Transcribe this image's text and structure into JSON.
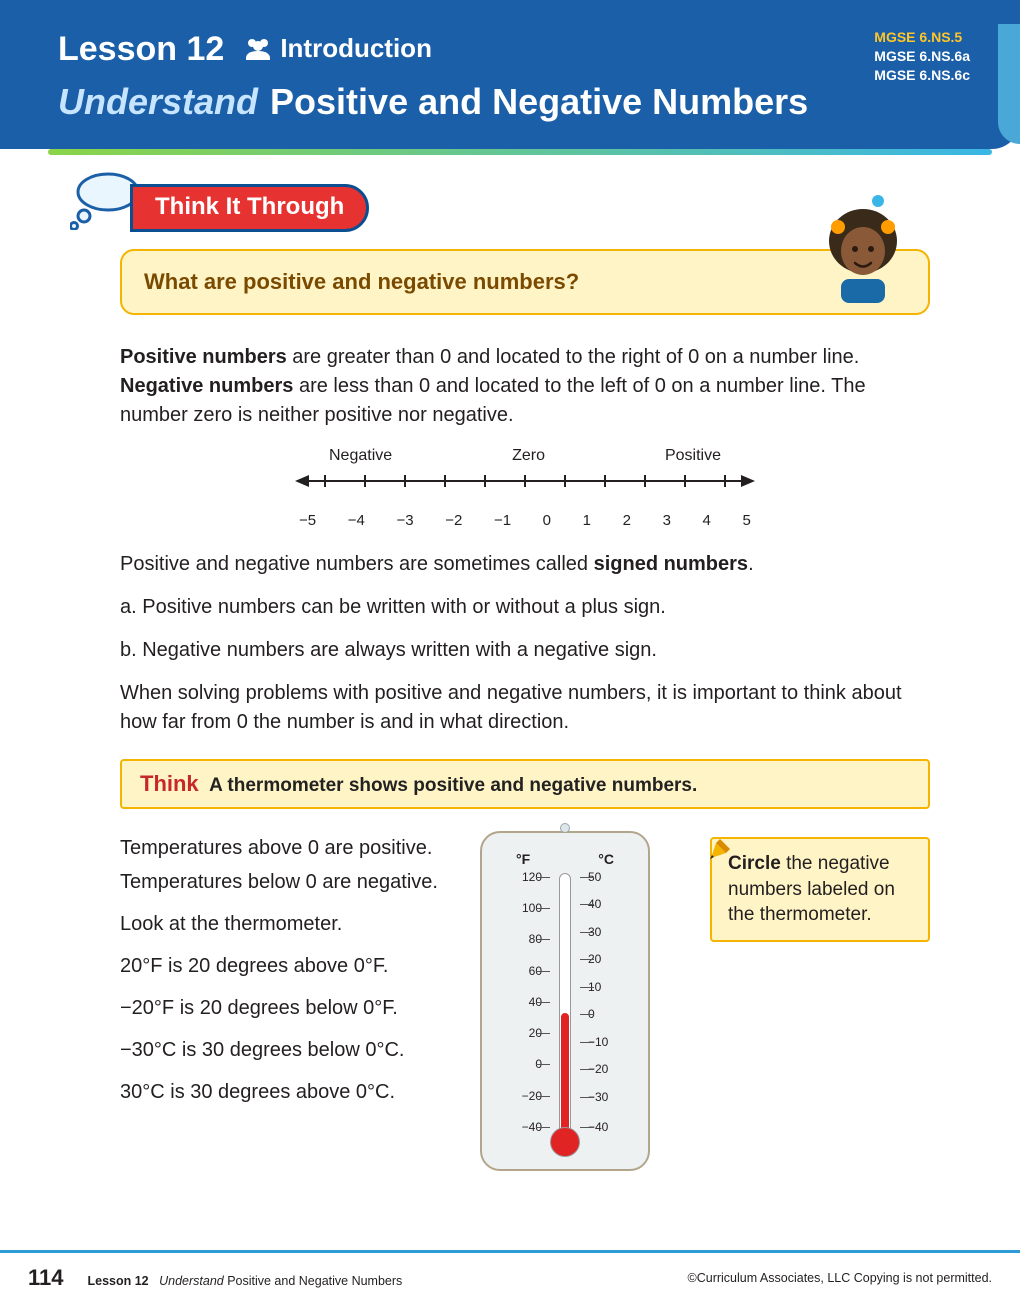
{
  "header": {
    "lesson_label": "Lesson 12",
    "intro_label": "Introduction",
    "standards": [
      "MGSE 6.NS.5",
      "MGSE 6.NS.6a",
      "MGSE 6.NS.6c"
    ],
    "title_understand": "Understand",
    "title_rest": "Positive and Negative Numbers"
  },
  "section": {
    "think_it_through": "Think It Through",
    "question": "What are positive and negative numbers?"
  },
  "body": {
    "p1_b1": "Positive numbers",
    "p1_r1": " are greater than 0 and located to the right of 0 on a number line. ",
    "p1_b2": "Negative numbers",
    "p1_r2": " are less than 0 and located to the left of 0 on a number line. The number zero is neither positive nor negative.",
    "p2_a": "Positive and negative numbers are sometimes called ",
    "p2_b": "signed numbers",
    "p2_c": ".",
    "li_a": "a.  Positive numbers can be written with or without a plus sign.",
    "li_b": "b.  Negative numbers are always written with a negative sign.",
    "p3": "When solving problems with positive and negative numbers, it is important to think about how far from 0 the number is and in what direction."
  },
  "number_line": {
    "labels": [
      "Negative",
      "Zero",
      "Positive"
    ],
    "ticks": [
      "−5",
      "−4",
      "−3",
      "−2",
      "−1",
      "0",
      "1",
      "2",
      "3",
      "4",
      "5"
    ],
    "line_color": "#231f20"
  },
  "think_band": {
    "lead": "Think",
    "rest": "A thermometer shows positive and negative numbers."
  },
  "therm_text": {
    "t1": "Temperatures above 0 are positive. Temperatures below 0 are negative.",
    "t2": "Look at the thermometer.",
    "t3": "20°F is 20 degrees above 0°F.",
    "t4": "−20°F is 20 degrees below 0°F.",
    "t5": "−30°C is 30 degrees below 0°C.",
    "t6": "30°C is 30 degrees above 0°C."
  },
  "thermometer": {
    "header_f": "°F",
    "header_c": "°C",
    "f_scale": [
      {
        "label": "120",
        "pct": 0
      },
      {
        "label": "100",
        "pct": 12.5
      },
      {
        "label": "80",
        "pct": 25
      },
      {
        "label": "60",
        "pct": 37.5
      },
      {
        "label": "40",
        "pct": 50
      },
      {
        "label": "20",
        "pct": 62.5
      },
      {
        "label": "0",
        "pct": 75
      },
      {
        "label": "−20",
        "pct": 87.5
      },
      {
        "label": "−40",
        "pct": 100
      }
    ],
    "c_scale": [
      {
        "label": "50",
        "pct": 0
      },
      {
        "label": "40",
        "pct": 11
      },
      {
        "label": "30",
        "pct": 22
      },
      {
        "label": "20",
        "pct": 33
      },
      {
        "label": "10",
        "pct": 44
      },
      {
        "label": "0",
        "pct": 55
      },
      {
        "label": "−10",
        "pct": 66
      },
      {
        "label": "−20",
        "pct": 77
      },
      {
        "label": "−30",
        "pct": 88
      },
      {
        "label": "−40",
        "pct": 100
      }
    ],
    "mercury_pct": 48,
    "mercury_color": "#e02424",
    "box_bg": "#eef1f2",
    "box_border": "#b3a58a"
  },
  "callout": {
    "b1": "Circle",
    "rest": " the negative numbers labeled on the thermometer."
  },
  "footer": {
    "page": "114",
    "lesson": "Lesson 12",
    "title_i": "Understand",
    "title_r": " Positive and Negative Numbers",
    "copyright": "©Curriculum Associates, LLC    Copying is not permitted."
  }
}
